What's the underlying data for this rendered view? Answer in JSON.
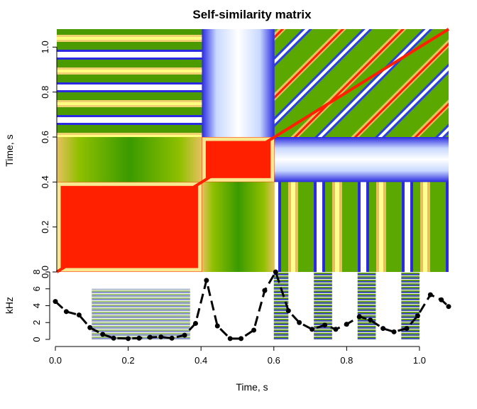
{
  "chart_data": [
    {
      "type": "heatmap",
      "title": "Self-similarity matrix",
      "xlabel": "",
      "ylabel": "Time, s",
      "xlim": [
        0,
        1.08
      ],
      "ylim": [
        0,
        1.08
      ],
      "y_ticks": [
        0.0,
        0.2,
        0.4,
        0.6,
        0.8,
        1.0
      ],
      "y_tick_labels": [
        "0.0",
        "0.2",
        "0.4",
        "0.6",
        "0.8",
        "1.0"
      ],
      "color_scale": [
        "#2020e0",
        "#ffffff",
        "#f8f0a0",
        "#e8c060",
        "#60b000",
        "#ff2000"
      ],
      "blocks": [
        {
          "x": [
            0.0,
            0.4
          ],
          "y": [
            0.0,
            0.4
          ],
          "level": "high"
        },
        {
          "x": [
            0.4,
            0.6
          ],
          "y": [
            0.4,
            0.6
          ],
          "level": "high"
        },
        {
          "x": [
            0.6,
            1.08
          ],
          "y": [
            0.6,
            1.08
          ],
          "level": "diagonal-stripes"
        },
        {
          "x": [
            0.0,
            0.4
          ],
          "y": [
            0.6,
            1.08
          ],
          "level": "alternating"
        },
        {
          "x": [
            0.4,
            0.6
          ],
          "y": [
            0.6,
            1.08
          ],
          "level": "low"
        },
        {
          "x": [
            0.6,
            1.08
          ],
          "y": [
            0.0,
            0.4
          ],
          "level": "periodic"
        },
        {
          "x": [
            0.6,
            1.08
          ],
          "y": [
            0.4,
            0.6
          ],
          "level": "low"
        },
        {
          "x": [
            0.0,
            0.4
          ],
          "y": [
            0.4,
            0.6
          ],
          "level": "medium"
        },
        {
          "x": [
            0.4,
            0.6
          ],
          "y": [
            0.0,
            0.4
          ],
          "level": "medium"
        }
      ]
    },
    {
      "type": "line",
      "title": "",
      "xlabel": "Time, s",
      "ylabel": "kHz",
      "xlim": [
        0,
        1.08
      ],
      "ylim": [
        0,
        8
      ],
      "x_ticks": [
        0.0,
        0.2,
        0.4,
        0.6,
        0.8,
        1.0
      ],
      "x_tick_labels": [
        "0.0",
        "0.2",
        "0.4",
        "0.6",
        "0.8",
        "1.0"
      ],
      "y_ticks": [
        0,
        2,
        4,
        6,
        8
      ],
      "y_tick_labels": [
        "0",
        "2",
        "4",
        "6",
        "8"
      ],
      "spectrogram_segments": [
        [
          0.1,
          0.37
        ],
        [
          0.6,
          0.64
        ],
        [
          0.71,
          0.76
        ],
        [
          0.83,
          0.88
        ],
        [
          0.95,
          1.0
        ]
      ],
      "x": [
        0.0,
        0.03,
        0.065,
        0.095,
        0.13,
        0.16,
        0.2,
        0.23,
        0.26,
        0.29,
        0.32,
        0.355,
        0.385,
        0.415,
        0.445,
        0.48,
        0.51,
        0.545,
        0.575,
        0.605,
        0.64,
        0.67,
        0.705,
        0.74,
        0.77,
        0.8,
        0.835,
        0.865,
        0.9,
        0.93,
        0.965,
        0.995,
        1.03,
        1.06,
        1.08
      ],
      "y": [
        4.5,
        3.3,
        2.9,
        1.4,
        0.6,
        0.15,
        0.1,
        0.15,
        0.25,
        0.3,
        0.15,
        0.5,
        1.9,
        7.0,
        1.6,
        0.1,
        0.1,
        1.1,
        5.8,
        8.0,
        3.4,
        2.0,
        1.2,
        1.7,
        1.2,
        1.8,
        2.7,
        2.3,
        1.3,
        0.9,
        1.3,
        2.8,
        5.3,
        4.7,
        3.9
      ]
    }
  ]
}
